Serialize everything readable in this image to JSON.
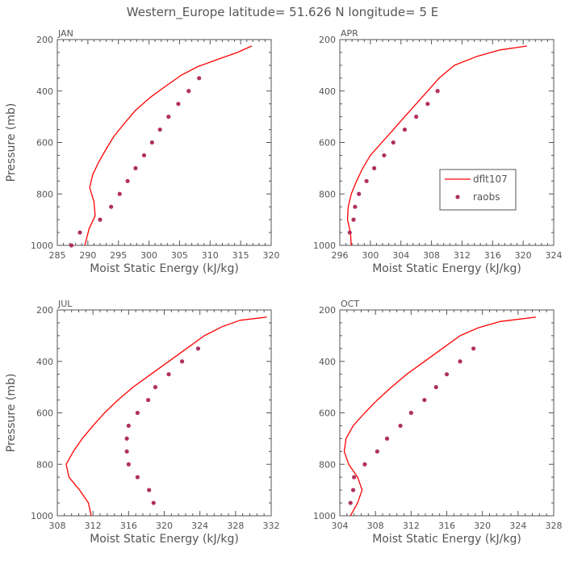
{
  "figure": {
    "title": "Western_Europe  latitude= 51.626 N longitude= 5 E",
    "line_color": "#ff0000",
    "point_color": "#b03060",
    "axis_color": "#555555"
  },
  "legend": {
    "line_label": "dflt107",
    "points_label": "raobs",
    "placement": "right-middle of APR panel"
  },
  "chart_data": [
    {
      "type": "line",
      "panel": "JAN",
      "xlabel": "Moist Static Energy (kJ/kg)",
      "ylabel": "Pressure (mb)",
      "xlim": [
        285,
        320
      ],
      "ylim": [
        1000,
        200
      ],
      "y_inverted": true,
      "xticks": [
        285,
        290,
        295,
        300,
        305,
        310,
        315,
        320
      ],
      "yticks": [
        200,
        400,
        600,
        800,
        1000
      ],
      "grid": false,
      "series": [
        {
          "name": "dflt107",
          "kind": "line",
          "x": [
            316.8,
            314.5,
            311.5,
            308.0,
            305.2,
            302.8,
            300.2,
            297.8,
            296.0,
            294.3,
            293.0,
            291.8,
            290.8,
            290.3,
            291.0,
            291.2,
            290.2,
            289.5
          ],
          "y": [
            225,
            250,
            275,
            305,
            340,
            380,
            425,
            475,
            525,
            575,
            625,
            675,
            725,
            775,
            830,
            885,
            935,
            1000
          ]
        },
        {
          "name": "raobs",
          "kind": "scatter",
          "x": [
            308.2,
            306.5,
            304.8,
            303.2,
            301.8,
            300.5,
            299.2,
            297.8,
            296.5,
            295.2,
            293.8,
            292.0,
            288.7,
            287.3
          ],
          "y": [
            350,
            400,
            450,
            500,
            550,
            600,
            650,
            700,
            750,
            800,
            850,
            900,
            950,
            1000
          ]
        }
      ]
    },
    {
      "type": "line",
      "panel": "APR",
      "xlabel": "Moist Static Energy (kJ/kg)",
      "ylabel": "",
      "xlim": [
        296,
        324
      ],
      "ylim": [
        1000,
        200
      ],
      "y_inverted": true,
      "xticks": [
        296,
        300,
        304,
        308,
        312,
        316,
        320,
        324
      ],
      "yticks": [
        200,
        400,
        600,
        800,
        1000
      ],
      "grid": false,
      "series": [
        {
          "name": "dflt107",
          "kind": "line",
          "x": [
            320.5,
            317.0,
            314.0,
            311.0,
            309.0,
            307.5,
            306.0,
            304.5,
            303.0,
            301.5,
            300.0,
            299.0,
            298.2,
            297.5,
            297.1,
            297.0,
            297.4,
            297.5
          ],
          "y": [
            225,
            240,
            265,
            300,
            350,
            400,
            450,
            500,
            550,
            600,
            650,
            700,
            750,
            800,
            850,
            900,
            950,
            1000
          ]
        },
        {
          "name": "raobs",
          "kind": "scatter",
          "x": [
            308.8,
            307.5,
            306.0,
            304.5,
            303.0,
            301.8,
            300.5,
            299.5,
            298.5,
            298.0,
            297.8,
            297.3
          ],
          "y": [
            400,
            450,
            500,
            550,
            600,
            650,
            700,
            750,
            800,
            850,
            900,
            950
          ]
        }
      ]
    },
    {
      "type": "line",
      "panel": "JUL",
      "xlabel": "Moist Static Energy (kJ/kg)",
      "ylabel": "Pressure (mb)",
      "xlim": [
        308,
        332
      ],
      "ylim": [
        1000,
        200
      ],
      "y_inverted": true,
      "xticks": [
        308,
        312,
        316,
        320,
        324,
        328,
        332
      ],
      "yticks": [
        200,
        400,
        600,
        800,
        1000
      ],
      "grid": false,
      "series": [
        {
          "name": "dflt107",
          "kind": "line",
          "x": [
            331.5,
            328.5,
            326.5,
            324.5,
            322.5,
            320.5,
            318.5,
            316.5,
            314.8,
            313.3,
            312.0,
            310.8,
            309.8,
            309.0,
            309.3,
            310.5,
            311.5,
            311.8
          ],
          "y": [
            228,
            240,
            265,
            300,
            350,
            400,
            450,
            500,
            550,
            600,
            650,
            700,
            750,
            800,
            850,
            900,
            950,
            1000
          ]
        },
        {
          "name": "raobs",
          "kind": "scatter",
          "x": [
            323.8,
            322.0,
            320.5,
            319.0,
            318.2,
            317.0,
            316.0,
            315.8,
            315.8,
            316.0,
            317.0,
            318.3,
            318.8
          ],
          "y": [
            350,
            400,
            450,
            500,
            550,
            600,
            650,
            700,
            750,
            800,
            850,
            900,
            950
          ]
        }
      ]
    },
    {
      "type": "line",
      "panel": "OCT",
      "xlabel": "Moist Static Energy (kJ/kg)",
      "ylabel": "",
      "xlim": [
        304,
        328
      ],
      "ylim": [
        1000,
        200
      ],
      "y_inverted": true,
      "xticks": [
        304,
        308,
        312,
        316,
        320,
        324,
        328
      ],
      "yticks": [
        200,
        400,
        600,
        800,
        1000
      ],
      "grid": false,
      "series": [
        {
          "name": "dflt107",
          "kind": "line",
          "x": [
            326.0,
            322.0,
            319.5,
            317.5,
            315.5,
            313.5,
            311.5,
            309.8,
            308.2,
            306.8,
            305.5,
            304.7,
            304.5,
            305.0,
            306.0,
            306.5,
            306.0,
            305.2
          ],
          "y": [
            228,
            245,
            270,
            300,
            350,
            400,
            450,
            500,
            550,
            600,
            650,
            700,
            750,
            800,
            850,
            900,
            950,
            1000
          ]
        },
        {
          "name": "raobs",
          "kind": "scatter",
          "x": [
            319.0,
            317.5,
            316.0,
            314.8,
            313.5,
            312.0,
            310.8,
            309.3,
            308.2,
            306.8,
            305.6,
            305.5,
            305.2
          ],
          "y": [
            350,
            400,
            450,
            500,
            550,
            600,
            650,
            700,
            750,
            800,
            850,
            900,
            950
          ]
        }
      ]
    }
  ]
}
